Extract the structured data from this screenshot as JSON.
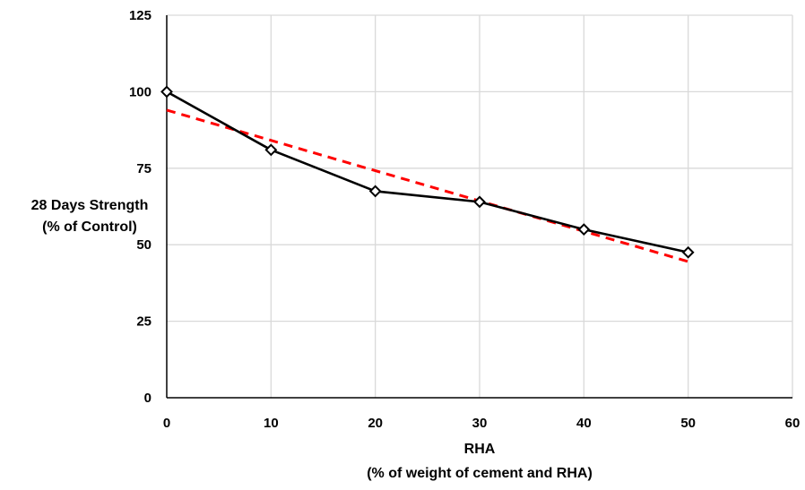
{
  "chart_data": {
    "type": "line",
    "xlabel_lines": [
      "RHA",
      "(% of weight of cement and RHA)"
    ],
    "ylabel_lines": [
      "28 Days Strength",
      "(% of Control)"
    ],
    "xlim": [
      0,
      60
    ],
    "ylim": [
      0,
      125
    ],
    "x_ticks": [
      0,
      10,
      20,
      30,
      40,
      50,
      60
    ],
    "y_ticks": [
      0,
      25,
      50,
      75,
      100,
      125
    ],
    "grid": true,
    "series": [
      {
        "x": [
          0,
          10,
          20,
          30,
          40,
          50
        ],
        "values": [
          100,
          81,
          67.5,
          64,
          55,
          47.5
        ],
        "color": "#000000",
        "style": "solid",
        "marker": "diamond"
      }
    ],
    "trendline": {
      "type": "linear",
      "x": [
        0,
        50
      ],
      "values": [
        94,
        44.5
      ],
      "color": "#ff0000",
      "style": "dashed"
    }
  }
}
